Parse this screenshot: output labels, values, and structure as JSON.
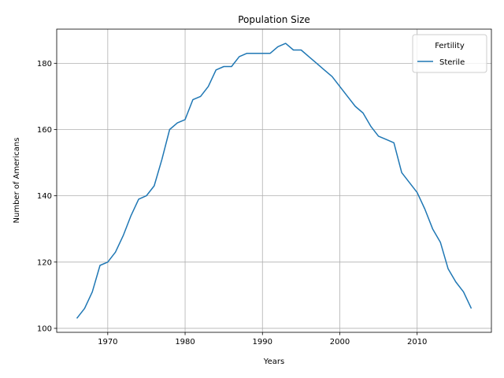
{
  "chart_data": {
    "type": "line",
    "title": "Population Size",
    "xlabel": "Years",
    "ylabel": "Number of Americans",
    "xlim": [
      1963.4,
      2019.6
    ],
    "ylim": [
      98.8,
      190.3
    ],
    "xticks": [
      1970,
      1980,
      1990,
      2000,
      2010
    ],
    "yticks": [
      100,
      120,
      140,
      160,
      180
    ],
    "grid": true,
    "legend": {
      "title": "Fertility",
      "placement": "top-right"
    },
    "series": [
      {
        "name": "Sterile",
        "color": "#1f77b4",
        "x": [
          1966,
          1967,
          1968,
          1969,
          1970,
          1971,
          1972,
          1973,
          1974,
          1975,
          1976,
          1977,
          1978,
          1979,
          1980,
          1981,
          1982,
          1983,
          1984,
          1985,
          1986,
          1987,
          1988,
          1989,
          1990,
          1991,
          1992,
          1993,
          1994,
          1995,
          1996,
          1997,
          1998,
          1999,
          2000,
          2001,
          2002,
          2003,
          2004,
          2005,
          2006,
          2007,
          2008,
          2009,
          2010,
          2011,
          2012,
          2013,
          2014,
          2015,
          2016,
          2017
        ],
        "y": [
          103,
          106,
          111,
          119,
          120,
          123,
          128,
          134,
          139,
          140,
          143,
          151,
          160,
          162,
          163,
          169,
          170,
          173,
          178,
          179,
          179,
          182,
          183,
          183,
          183,
          183,
          185,
          186,
          184,
          184,
          182,
          180,
          178,
          176,
          173,
          170,
          167,
          165,
          161,
          158,
          157,
          156,
          147,
          144,
          141,
          136,
          130,
          126,
          118,
          114,
          111,
          106
        ]
      }
    ]
  }
}
